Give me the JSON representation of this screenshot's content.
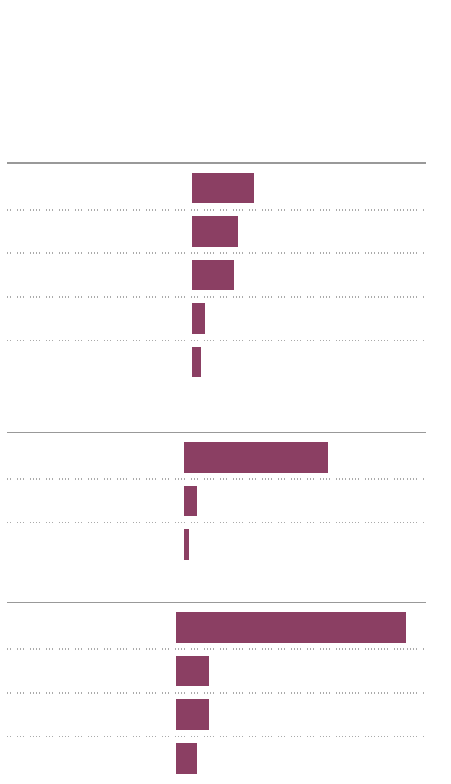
{
  "chart_data": [
    {
      "type": "bar",
      "orientation": "horizontal",
      "categories": [
        null,
        null,
        null,
        null,
        null
      ],
      "values": [
        77,
        57,
        52,
        16,
        11
      ],
      "color": "#8b3f63",
      "xlim": [
        0,
        300
      ]
    },
    {
      "type": "bar",
      "orientation": "horizontal",
      "categories": [
        null,
        null,
        null
      ],
      "values": [
        178,
        16,
        6
      ],
      "color": "#8b3f63",
      "xlim": [
        0,
        300
      ]
    },
    {
      "type": "bar",
      "orientation": "horizontal",
      "categories": [
        null,
        null,
        null,
        null
      ],
      "values": [
        285,
        41,
        41,
        26
      ],
      "color": "#8b3f63",
      "xlim": [
        0,
        300
      ]
    }
  ]
}
